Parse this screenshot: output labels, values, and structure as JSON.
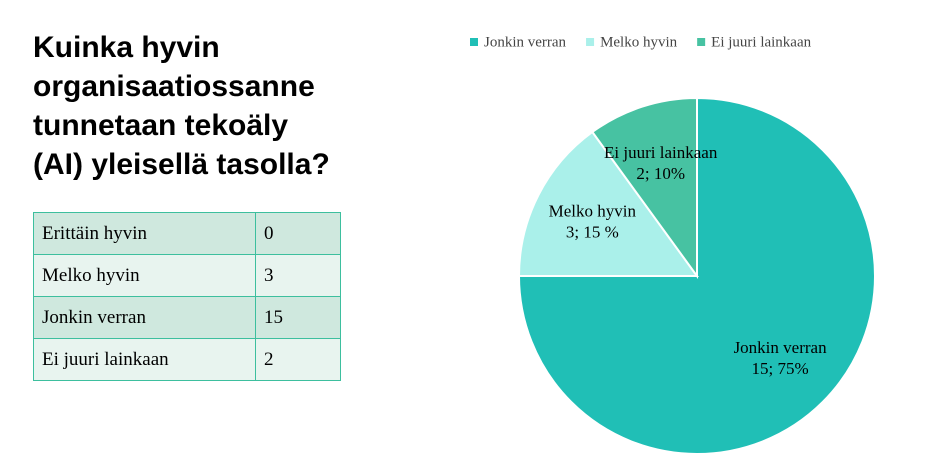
{
  "title_lines": [
    "Kuinka hyvin",
    "organisaatiossanne",
    "tunnetaan tekoäly",
    "(AI) yleisellä tasolla?"
  ],
  "table": {
    "rows": [
      [
        "Erittäin hyvin",
        0
      ],
      [
        "Melko hyvin",
        3
      ],
      [
        "Jonkin verran",
        15
      ],
      [
        "Ei juuri lainkaan",
        2
      ]
    ]
  },
  "chart_data": {
    "type": "pie",
    "categories": [
      "Jonkin verran",
      "Melko hyvin",
      "Ei juuri lainkaan"
    ],
    "values": [
      15,
      3,
      2
    ],
    "value_labels": [
      "15; 75%",
      "3; 15 %",
      "2; 10%"
    ],
    "colors": [
      "#20bfb6",
      "#aaf0ea",
      "#47c2a2"
    ],
    "legend": "top"
  }
}
